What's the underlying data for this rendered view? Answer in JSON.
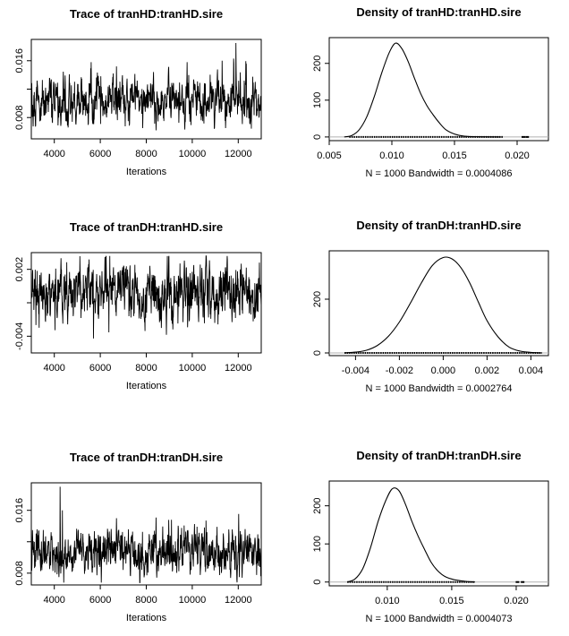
{
  "chart_data": [
    {
      "type": "line",
      "title": "Trace of tranHD:tranHD.sire",
      "xlabel": "Iterations",
      "ylabel": "",
      "xlim": [
        3000,
        13000
      ],
      "ylim": [
        0.005,
        0.019
      ],
      "xticks": [
        4000,
        6000,
        8000,
        10000,
        12000
      ],
      "xtick_labels": [
        "4000",
        "6000",
        "8000",
        "10000",
        "12000"
      ],
      "yticks": [
        0.008,
        0.012,
        0.016
      ],
      "ytick_labels": [
        "0.008",
        "",
        "0.016"
      ],
      "series": [
        {
          "center": 0.0102,
          "spread": 0.0014,
          "min": 0.0062,
          "max": 0.0185,
          "spikes": [
            [
              5600,
              0.0158
            ],
            [
              6700,
              0.0152
            ],
            [
              11900,
              0.0185
            ],
            [
              11800,
              0.0163
            ],
            [
              11300,
              0.016
            ]
          ]
        }
      ]
    },
    {
      "type": "line",
      "title": "Density of tranHD:tranHD.sire",
      "xlabel": "N = 1000   Bandwidth = 0.0004086",
      "ylabel": "",
      "xlim": [
        0.005,
        0.0225
      ],
      "ylim": [
        -10,
        270
      ],
      "xticks": [
        0.005,
        0.01,
        0.015,
        0.02
      ],
      "xtick_labels": [
        "0.005",
        "0.010",
        "0.015",
        "0.020"
      ],
      "yticks": [
        0,
        100,
        200
      ],
      "ytick_labels": [
        "0",
        "100",
        "200"
      ],
      "density_points": [
        [
          0.0062,
          0
        ],
        [
          0.0068,
          4
        ],
        [
          0.0074,
          20
        ],
        [
          0.008,
          55
        ],
        [
          0.0086,
          110
        ],
        [
          0.0092,
          175
        ],
        [
          0.0098,
          230
        ],
        [
          0.0103,
          255
        ],
        [
          0.0108,
          240
        ],
        [
          0.0113,
          205
        ],
        [
          0.0118,
          160
        ],
        [
          0.0123,
          118
        ],
        [
          0.0128,
          85
        ],
        [
          0.0133,
          60
        ],
        [
          0.0138,
          38
        ],
        [
          0.0143,
          20
        ],
        [
          0.015,
          8
        ],
        [
          0.0158,
          2
        ],
        [
          0.017,
          0.5
        ],
        [
          0.0187,
          0
        ]
      ],
      "rug": [
        0.0066,
        0.0189
      ],
      "extra_rug_points": [
        0.0205,
        0.0208
      ]
    },
    {
      "type": "line",
      "title": "Trace of tranDH:tranHD.sire",
      "xlabel": "Iterations",
      "ylabel": "",
      "xlim": [
        3000,
        13000
      ],
      "ylim": [
        -0.0055,
        0.0035
      ],
      "xticks": [
        4000,
        6000,
        8000,
        10000,
        12000
      ],
      "xtick_labels": [
        "4000",
        "6000",
        "8000",
        "10000",
        "12000"
      ],
      "yticks": [
        -0.004,
        -0.001,
        0.002
      ],
      "ytick_labels": [
        "-0.004",
        "",
        "0.002"
      ],
      "series": [
        {
          "center": -0.0001,
          "spread": 0.0011,
          "min": -0.0045,
          "max": 0.0032,
          "spikes": [
            [
              3200,
              -0.003
            ],
            [
              6200,
              0.0031
            ],
            [
              5700,
              -0.0042
            ],
            [
              7500,
              0.0024
            ],
            [
              9800,
              -0.0032
            ]
          ]
        }
      ]
    },
    {
      "type": "line",
      "title": "Density of tranDH:tranHD.sire",
      "xlabel": "N = 1000   Bandwidth = 0.0002764",
      "ylabel": "",
      "xlim": [
        -0.0052,
        0.0048
      ],
      "ylim": [
        -10,
        380
      ],
      "xticks": [
        -0.004,
        -0.002,
        0.0,
        0.002,
        0.004
      ],
      "xtick_labels": [
        "-0.004",
        "-0.002",
        "0.000",
        "0.002",
        "0.004"
      ],
      "yticks": [
        0,
        200
      ],
      "ytick_labels": [
        "0",
        "200"
      ],
      "density_points": [
        [
          -0.0045,
          0
        ],
        [
          -0.004,
          3
        ],
        [
          -0.0035,
          10
        ],
        [
          -0.003,
          28
        ],
        [
          -0.0025,
          62
        ],
        [
          -0.002,
          115
        ],
        [
          -0.0015,
          185
        ],
        [
          -0.001,
          260
        ],
        [
          -0.0005,
          325
        ],
        [
          0.0,
          355
        ],
        [
          0.0004,
          350
        ],
        [
          0.0008,
          318
        ],
        [
          0.0012,
          262
        ],
        [
          0.0016,
          190
        ],
        [
          0.002,
          120
        ],
        [
          0.0025,
          60
        ],
        [
          0.003,
          22
        ],
        [
          0.0035,
          7
        ],
        [
          0.004,
          2
        ],
        [
          0.0045,
          0
        ]
      ],
      "rug": [
        -0.0045,
        0.0045
      ],
      "extra_rug_points": []
    },
    {
      "type": "line",
      "title": "Trace of tranDH:tranDH.sire",
      "xlabel": "Iterations",
      "ylabel": "",
      "xlim": [
        3000,
        13000
      ],
      "ylim": [
        0.0065,
        0.0195
      ],
      "xticks": [
        4000,
        6000,
        8000,
        10000,
        12000
      ],
      "xtick_labels": [
        "4000",
        "6000",
        "8000",
        "10000",
        "12000"
      ],
      "yticks": [
        0.008,
        0.012,
        0.016
      ],
      "ytick_labels": [
        "0.008",
        "",
        "0.016"
      ],
      "series": [
        {
          "center": 0.0106,
          "spread": 0.0013,
          "min": 0.0068,
          "max": 0.019,
          "spikes": [
            [
              4250,
              0.019
            ],
            [
              4350,
              0.016
            ],
            [
              6700,
              0.015
            ],
            [
              9100,
              0.0148
            ],
            [
              10600,
              0.0147
            ]
          ]
        }
      ]
    },
    {
      "type": "line",
      "title": "Density of tranDH:tranDH.sire",
      "xlabel": "N = 1000   Bandwidth = 0.0004073",
      "ylabel": "",
      "xlim": [
        0.0055,
        0.0225
      ],
      "ylim": [
        -10,
        265
      ],
      "xticks": [
        0.01,
        0.015,
        0.02
      ],
      "xtick_labels": [
        "0.010",
        "0.015",
        "0.020"
      ],
      "yticks": [
        0,
        100,
        200
      ],
      "ytick_labels": [
        "0",
        "100",
        "200"
      ],
      "density_points": [
        [
          0.0069,
          0
        ],
        [
          0.0075,
          8
        ],
        [
          0.0081,
          35
        ],
        [
          0.0087,
          90
        ],
        [
          0.0093,
          160
        ],
        [
          0.0099,
          215
        ],
        [
          0.0104,
          245
        ],
        [
          0.0109,
          240
        ],
        [
          0.0114,
          205
        ],
        [
          0.0119,
          160
        ],
        [
          0.0124,
          120
        ],
        [
          0.0129,
          85
        ],
        [
          0.0134,
          52
        ],
        [
          0.0139,
          30
        ],
        [
          0.0145,
          14
        ],
        [
          0.0152,
          6
        ],
        [
          0.016,
          2
        ],
        [
          0.0168,
          0
        ]
      ],
      "rug": [
        0.0069,
        0.0168
      ],
      "extra_rug_points": [
        0.0201,
        0.0205
      ]
    }
  ]
}
